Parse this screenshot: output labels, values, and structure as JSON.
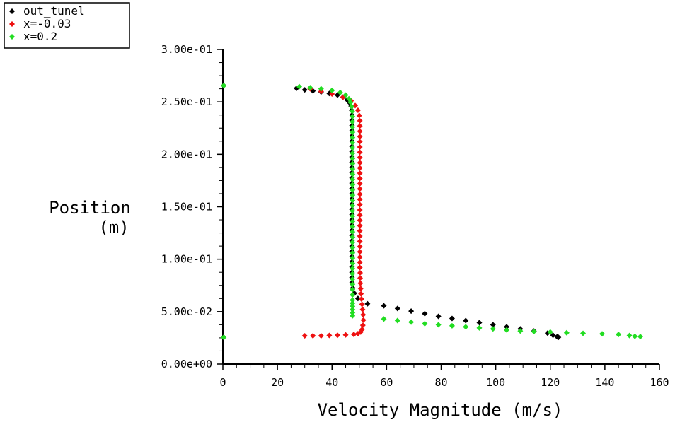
{
  "chart_data": {
    "type": "scatter",
    "xlabel": "Velocity Magnitude (m/s)",
    "ylabel_line1": "Position",
    "ylabel_line2": "(m)",
    "xlim": [
      0,
      160
    ],
    "ylim": [
      0,
      0.3
    ],
    "x_ticks": [
      0,
      20,
      40,
      60,
      80,
      100,
      120,
      140,
      160
    ],
    "x_tick_labels": [
      "0",
      "20",
      "40",
      "60",
      "80",
      "100",
      "120",
      "140",
      "160"
    ],
    "y_ticks": [
      0,
      0.05,
      0.1,
      0.15,
      0.2,
      0.25,
      0.3
    ],
    "y_tick_labels": [
      "0.00e+00",
      "5.00e-02",
      "1.00e-01",
      "1.50e-01",
      "2.00e-01",
      "2.50e-01",
      "3.00e-01"
    ],
    "legend_position": "top-left",
    "series": [
      {
        "name": "out_tunel",
        "color": "#000000",
        "x": [
          0.3,
          0.3,
          27,
          30,
          33,
          36,
          39,
          42,
          44,
          45.5,
          46.5,
          47,
          47.2,
          47.3,
          47.3,
          47.3,
          47.3,
          47.3,
          47.3,
          47.3,
          47.3,
          47.3,
          47.3,
          47.3,
          47.3,
          47.3,
          47.3,
          47.3,
          47.3,
          47.3,
          47.3,
          47.3,
          47.3,
          47.3,
          47.3,
          47.3,
          47.3,
          47.3,
          47.3,
          47.3,
          47.3,
          47.3,
          47.3,
          47.3,
          47.3,
          47.3,
          47.6,
          48.2,
          49.5,
          53,
          59,
          64,
          69,
          74,
          79,
          84,
          89,
          94,
          99,
          104,
          109,
          114,
          119,
          121,
          122.5,
          123
        ],
        "y": [
          0.0255,
          0.2655,
          0.263,
          0.2615,
          0.2605,
          0.2595,
          0.258,
          0.2565,
          0.2545,
          0.252,
          0.249,
          0.246,
          0.242,
          0.2375,
          0.2325,
          0.2275,
          0.2225,
          0.2175,
          0.2125,
          0.2075,
          0.2025,
          0.1975,
          0.1925,
          0.1875,
          0.1825,
          0.1775,
          0.1725,
          0.1675,
          0.1625,
          0.1575,
          0.1525,
          0.1475,
          0.1425,
          0.1375,
          0.1325,
          0.1275,
          0.1225,
          0.1175,
          0.1125,
          0.1075,
          0.1025,
          0.0975,
          0.0925,
          0.0875,
          0.0825,
          0.0775,
          0.0725,
          0.0675,
          0.0625,
          0.0575,
          0.0555,
          0.053,
          0.0505,
          0.048,
          0.0455,
          0.0435,
          0.0415,
          0.0395,
          0.0375,
          0.0355,
          0.0335,
          0.0315,
          0.0295,
          0.0275,
          0.026,
          0.0255
        ]
      },
      {
        "name": "x=-0.03",
        "color": "#ee1111",
        "x": [
          30,
          33,
          36,
          39,
          42,
          45,
          48,
          49.5,
          50.5,
          51,
          51.3,
          51.5,
          51.4,
          51.2,
          51,
          50.8,
          50.6,
          50.5,
          50.4,
          50.3,
          50.3,
          50.2,
          50.2,
          50.2,
          50.2,
          50.2,
          50.2,
          50.2,
          50.2,
          50.2,
          50.2,
          50.2,
          50.2,
          50.2,
          50.2,
          50.2,
          50.2,
          50.2,
          50.2,
          50.2,
          50.2,
          50.2,
          50.2,
          50.2,
          50.2,
          50.2,
          50.2,
          50.2,
          50.2,
          50.2,
          50,
          49.5,
          48.5,
          47,
          44,
          40,
          36,
          32
        ],
        "y": [
          0.027,
          0.027,
          0.027,
          0.0273,
          0.0275,
          0.0278,
          0.0282,
          0.029,
          0.0305,
          0.033,
          0.037,
          0.042,
          0.047,
          0.052,
          0.057,
          0.062,
          0.067,
          0.072,
          0.077,
          0.082,
          0.087,
          0.092,
          0.097,
          0.102,
          0.107,
          0.112,
          0.117,
          0.122,
          0.127,
          0.132,
          0.137,
          0.142,
          0.147,
          0.152,
          0.157,
          0.162,
          0.167,
          0.172,
          0.177,
          0.182,
          0.187,
          0.192,
          0.197,
          0.202,
          0.207,
          0.212,
          0.217,
          0.222,
          0.227,
          0.232,
          0.237,
          0.242,
          0.2465,
          0.251,
          0.2545,
          0.2575,
          0.26,
          0.2625
        ]
      },
      {
        "name": "x=0.2",
        "color": "#22dd22",
        "x": [
          0.3,
          0.3,
          28,
          32,
          36,
          40,
          43,
          45,
          46.2,
          46.8,
          47.2,
          47.4,
          47.5,
          47.5,
          47.5,
          47.5,
          47.5,
          47.5,
          47.5,
          47.5,
          47.5,
          47.5,
          47.5,
          47.5,
          47.5,
          47.5,
          47.5,
          47.5,
          47.5,
          47.5,
          47.5,
          47.5,
          47.5,
          47.5,
          47.5,
          47.5,
          47.5,
          47.5,
          47.5,
          47.5,
          47.5,
          47.5,
          47.5,
          47.5,
          47.5,
          47.5,
          47.5,
          47.5,
          47.5,
          47.5,
          47.5,
          47.5,
          47.5,
          59,
          64,
          69,
          74,
          79,
          84,
          89,
          94,
          99,
          104,
          109,
          114,
          120,
          126,
          132,
          139,
          145,
          149,
          151,
          153
        ],
        "y": [
          0.0255,
          0.2655,
          0.2645,
          0.2635,
          0.2625,
          0.261,
          0.259,
          0.2565,
          0.253,
          0.2495,
          0.2455,
          0.241,
          0.236,
          0.231,
          0.226,
          0.221,
          0.216,
          0.211,
          0.206,
          0.201,
          0.196,
          0.191,
          0.186,
          0.181,
          0.176,
          0.171,
          0.166,
          0.161,
          0.156,
          0.151,
          0.146,
          0.141,
          0.136,
          0.131,
          0.126,
          0.121,
          0.116,
          0.111,
          0.106,
          0.101,
          0.096,
          0.091,
          0.086,
          0.081,
          0.076,
          0.071,
          0.066,
          0.061,
          0.058,
          0.055,
          0.052,
          0.049,
          0.046,
          0.043,
          0.0415,
          0.04,
          0.0385,
          0.0375,
          0.0365,
          0.0355,
          0.0345,
          0.0335,
          0.0325,
          0.0315,
          0.031,
          0.0305,
          0.0298,
          0.0293,
          0.0288,
          0.0282,
          0.0272,
          0.0265,
          0.0262
        ]
      }
    ]
  }
}
